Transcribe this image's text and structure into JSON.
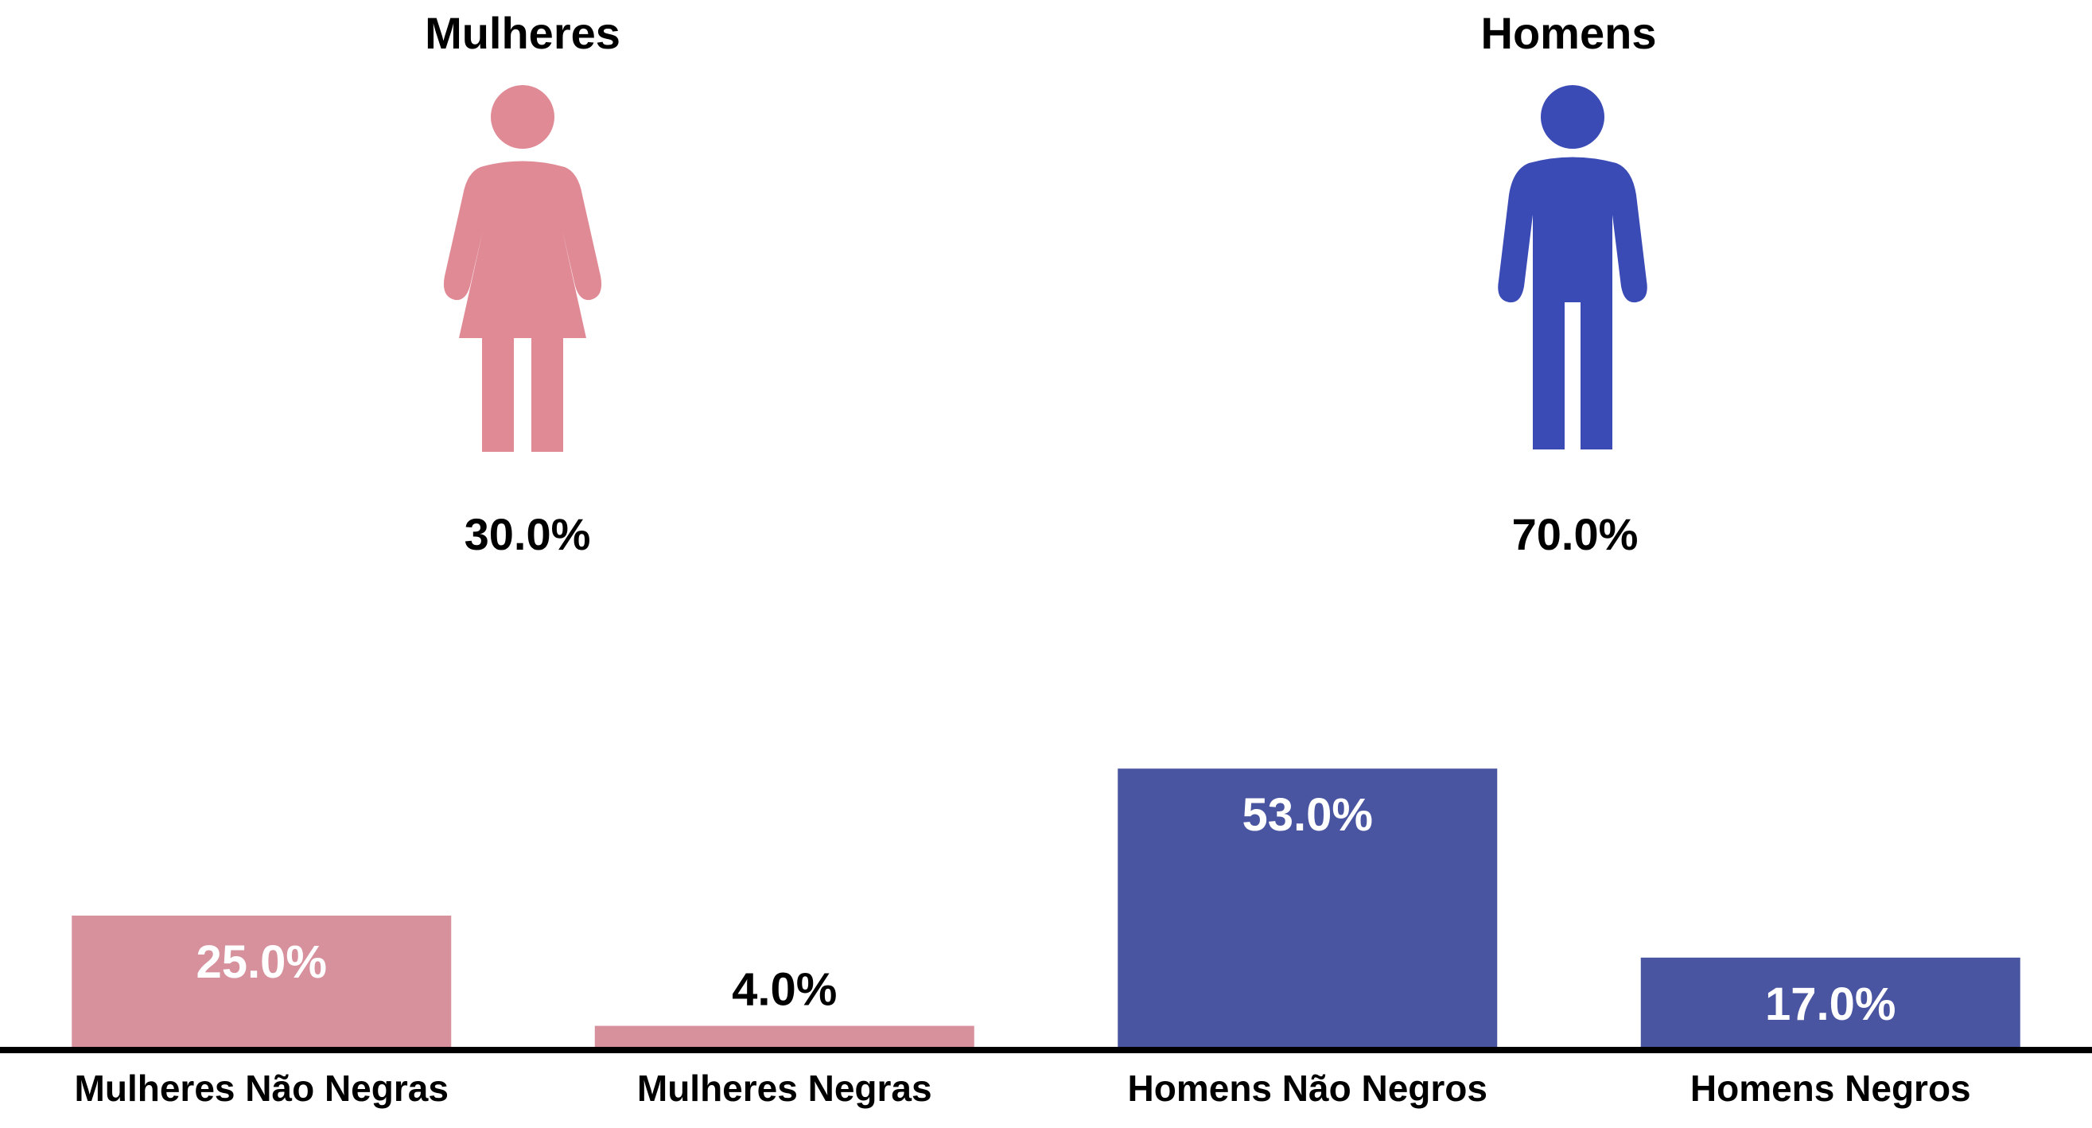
{
  "groups": {
    "women": {
      "title": "Mulheres",
      "percent_label": "30.0%",
      "value": 30.0,
      "icon": "woman-icon",
      "color": "#E08A96"
    },
    "men": {
      "title": "Homens",
      "percent_label": "70.0%",
      "value": 70.0,
      "icon": "man-icon",
      "color": "#3A4BB5"
    }
  },
  "chart_data": {
    "type": "bar",
    "categories": [
      "Mulheres Não Negras",
      "Mulheres Negras",
      "Homens Não Negros",
      "Homens Negros"
    ],
    "values": [
      25.0,
      4.0,
      53.0,
      17.0
    ],
    "value_labels": [
      "25.0%",
      "4.0%",
      "53.0%",
      "17.0%"
    ],
    "colors": [
      "#D6919D",
      "#D6919D",
      "#4A55A2",
      "#4A55A2"
    ],
    "title": "",
    "xlabel": "",
    "ylabel": "",
    "ylim": [
      0,
      60
    ],
    "grid": false
  }
}
